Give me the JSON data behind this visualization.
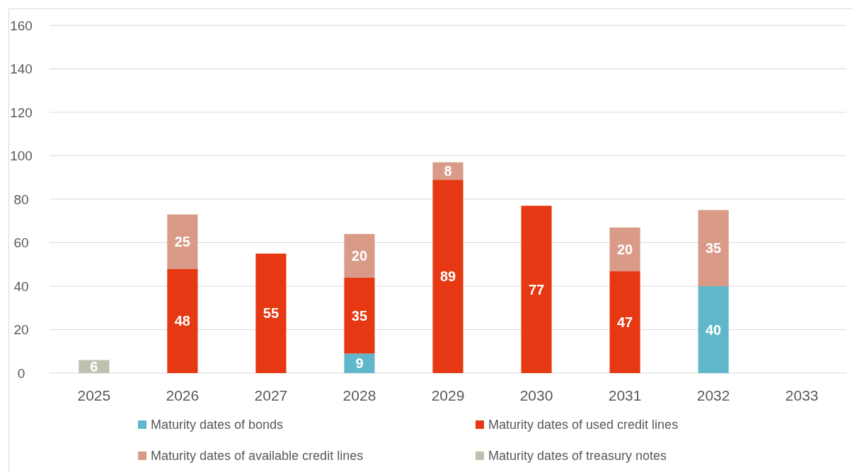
{
  "chart_data": {
    "type": "bar",
    "stacked": true,
    "categories": [
      "2025",
      "2026",
      "2027",
      "2028",
      "2029",
      "2030",
      "2031",
      "2032",
      "2033"
    ],
    "series": [
      {
        "name": "Maturity dates of bonds",
        "color": "#5fb7c9",
        "values": [
          null,
          null,
          null,
          9,
          null,
          null,
          null,
          40,
          null
        ]
      },
      {
        "name": "Maturity dates of used credit lines",
        "color": "#e63812",
        "values": [
          null,
          48,
          55,
          35,
          89,
          77,
          47,
          null,
          null
        ]
      },
      {
        "name": "Maturity dates of available credit lines",
        "color": "#d99a88",
        "values": [
          null,
          25,
          null,
          20,
          8,
          null,
          20,
          35,
          null
        ]
      },
      {
        "name": "Maturity dates of treasury notes",
        "color": "#c0c0b0",
        "values": [
          6,
          null,
          null,
          null,
          null,
          null,
          null,
          null,
          null
        ]
      }
    ],
    "ylim": [
      0,
      160
    ],
    "yticks": [
      0,
      20,
      40,
      60,
      80,
      100,
      120,
      140,
      160
    ],
    "grid": "y",
    "legend": "bottom",
    "data_labels": true
  }
}
